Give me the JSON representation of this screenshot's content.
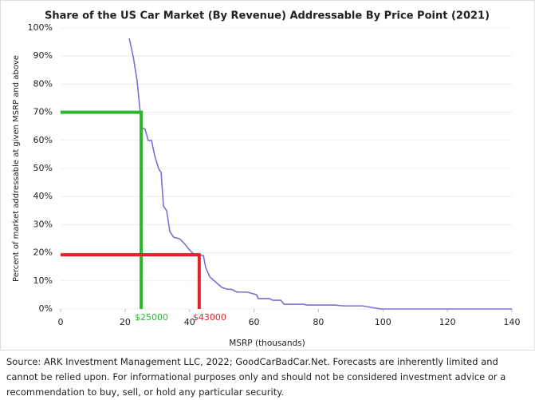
{
  "chart_data": {
    "type": "line",
    "title": "Share of the US Car Market (By Revenue) Addressable By Price Point (2021)",
    "x_label": "MSRP (thousands)",
    "y_label": "Percent of market addressable at given MSRP and above",
    "series": [
      {
        "color": "#7b6fd6",
        "x": [
          21.3,
          22.5,
          23.7,
          24.7,
          25.2,
          26.2,
          27.2,
          28.2,
          29.2,
          30.4,
          31.2,
          31.9,
          32.9,
          33.9,
          35.1,
          36.9,
          38.6,
          40,
          41.5,
          44.3,
          45,
          46.3,
          48,
          50,
          51.7,
          53,
          54.7,
          57.9,
          60.8,
          61.3,
          64.8,
          65.8,
          68.3,
          69.3,
          75.2,
          76.4,
          85,
          87.6,
          93.7,
          96.2,
          99.4,
          140
        ],
        "values": [
          96.3,
          90,
          81.5,
          70,
          64.5,
          64,
          60,
          60,
          54.5,
          50,
          48.5,
          36.6,
          35,
          27.5,
          25.5,
          25,
          23,
          21,
          19.3,
          19,
          14.8,
          11.4,
          9.7,
          7.7,
          7,
          7,
          6,
          6,
          5.1,
          3.7,
          3.7,
          3.1,
          3.1,
          1.7,
          1.7,
          1.4,
          1.4,
          1.1,
          1.1,
          0.6,
          0,
          0
        ]
      }
    ],
    "guides": [
      {
        "x": 25,
        "y": 70,
        "label": "$25000",
        "color": "#2db52d"
      },
      {
        "x": 43,
        "y": 19.3,
        "label": "$43000",
        "color": "#e0222a"
      }
    ],
    "xlim": [
      0,
      140
    ],
    "xticks": [
      0,
      20,
      40,
      60,
      80,
      100,
      120,
      140
    ],
    "ylim": [
      0,
      100
    ],
    "yticks": [
      {
        "value": 0,
        "label": "0%"
      },
      {
        "value": 10,
        "label": "10%"
      },
      {
        "value": 20,
        "label": "20%"
      },
      {
        "value": 30,
        "label": "30%"
      },
      {
        "value": 40,
        "label": "40%"
      },
      {
        "value": 50,
        "label": "50%"
      },
      {
        "value": 60,
        "label": "60%"
      },
      {
        "value": 70,
        "label": "70%"
      },
      {
        "value": 80,
        "label": "80%"
      },
      {
        "value": 90,
        "label": "90%"
      },
      {
        "value": 100,
        "label": "100%"
      }
    ],
    "grid": true
  },
  "source": "Source: ARK Investment Management LLC, 2022; GoodCarBadCar.Net. Forecasts are inherently limited and cannot be relied upon. For informational purposes only and should not be considered investment advice or a recommendation to buy, sell, or hold any particular security."
}
